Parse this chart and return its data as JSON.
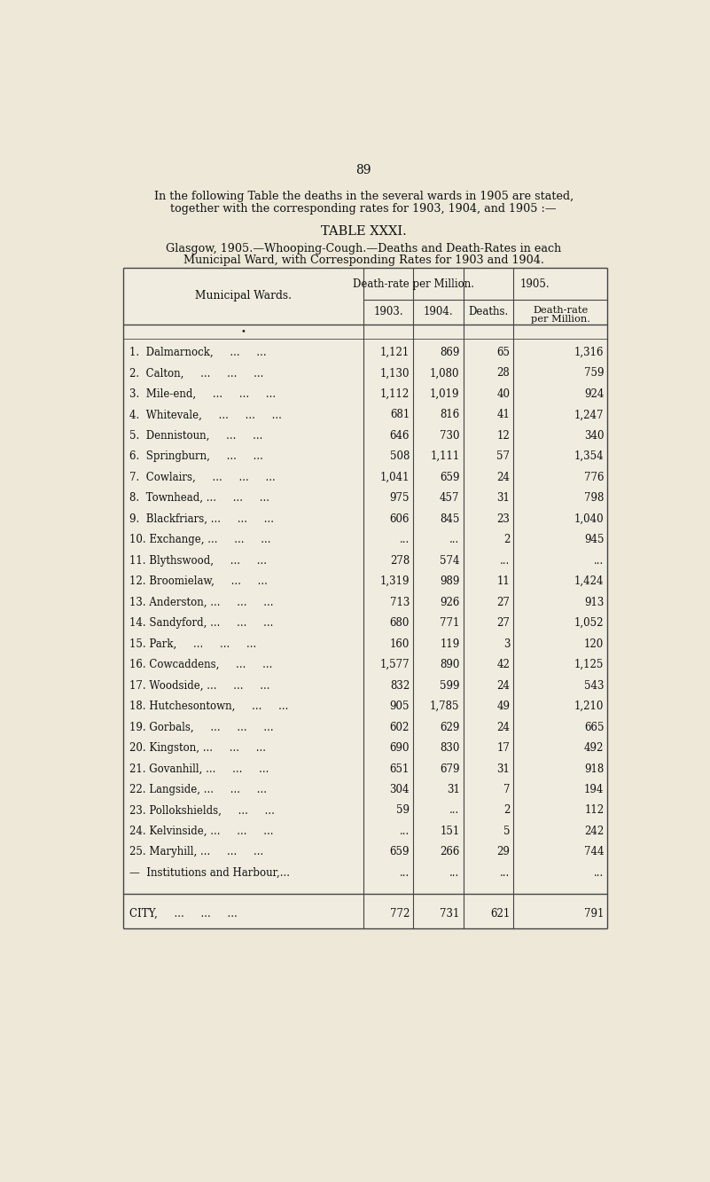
{
  "page_number": "89",
  "intro_text_line1": "In the following Table the deaths in the several wards in 1905 are stated,",
  "intro_text_line2": "together with the corresponding rates for 1903, 1904, and 1905 :—",
  "table_title": "TABLE XXXI.",
  "subtitle_line1": "Glasgow, 1905.—Whooping-Cough.—Deaths and Death-Rates in each",
  "subtitle_line2": "Municipal Ward, with Corresponding Rates for 1903 and 1904.",
  "rows": [
    [
      "1.  Dalmarnock,     ...     ...",
      "1,121",
      "869",
      "65",
      "1,316"
    ],
    [
      "2.  Calton,     ...     ...     ...",
      "1,130",
      "1,080",
      "28",
      "759"
    ],
    [
      "3.  Mile-end,     ...     ...     ...",
      "1,112",
      "1,019",
      "40",
      "924"
    ],
    [
      "4.  Whitevale,     ...     ...     ...",
      "681",
      "816",
      "41",
      "1,247"
    ],
    [
      "5.  Dennistoun,     ...     ...",
      "646",
      "730",
      "12",
      "340"
    ],
    [
      "6.  Springburn,     ...     ...",
      "508",
      "1,111",
      "57",
      "1,354"
    ],
    [
      "7.  Cowlairs,     ...     ...     ...",
      "1,041",
      "659",
      "24",
      "776"
    ],
    [
      "8.  Townhead, ...     ...     ...",
      "975",
      "457",
      "31",
      "798"
    ],
    [
      "9.  Blackfriars, ...     ...     ...",
      "606",
      "845",
      "23",
      "1,040"
    ],
    [
      "10. Exchange, ...     ...     ...",
      "...",
      "...",
      "2",
      "945"
    ],
    [
      "11. Blythswood,     ...     ...",
      "278",
      "574",
      "...",
      "..."
    ],
    [
      "12. Broomielaw,     ...     ...",
      "1,319",
      "989",
      "11",
      "1,424"
    ],
    [
      "13. Anderston, ...     ...     ...",
      "713",
      "926",
      "27",
      "913"
    ],
    [
      "14. Sandyford, ...     ...     ...",
      "680",
      "771",
      "27",
      "1,052"
    ],
    [
      "15. Park,     ...     ...     ...",
      "160",
      "119",
      "3",
      "120"
    ],
    [
      "16. Cowcaddens,     ...     ...",
      "1,577",
      "890",
      "42",
      "1,125"
    ],
    [
      "17. Woodside, ...     ...     ...",
      "832",
      "599",
      "24",
      "543"
    ],
    [
      "18. Hutchesontown,     ...     ...",
      "905",
      "1,785",
      "49",
      "1,210"
    ],
    [
      "19. Gorbals,     ...     ...     ...",
      "602",
      "629",
      "24",
      "665"
    ],
    [
      "20. Kingston, ...     ...     ...",
      "690",
      "830",
      "17",
      "492"
    ],
    [
      "21. Govanhill, ...     ...     ...",
      "651",
      "679",
      "31",
      "918"
    ],
    [
      "22. Langside, ...     ...     ...",
      "304",
      "31",
      "7",
      "194"
    ],
    [
      "23. Pollokshields,     ...     ...",
      "59",
      "...",
      "2",
      "112"
    ],
    [
      "24. Kelvinside, ...     ...     ...",
      "...",
      "151",
      "5",
      "242"
    ],
    [
      "25. Maryhill, ...     ...     ...",
      "659",
      "266",
      "29",
      "744"
    ],
    [
      "—  Institutions and Harbour,...",
      "...",
      "...",
      "...",
      "..."
    ]
  ],
  "city_row": [
    "CITY,     ...     ...     ...",
    "772",
    "731",
    "621",
    "791"
  ],
  "bg_color": "#ede8d8",
  "table_bg": "#f2eed e",
  "border_color": "#444444"
}
